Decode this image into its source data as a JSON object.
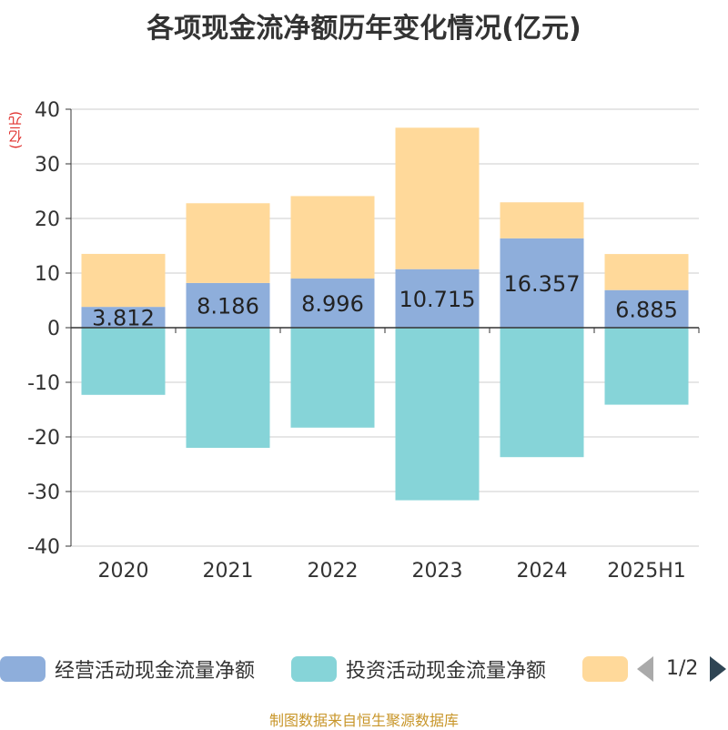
{
  "title": "各项现金流净额历年变化情况(亿元)",
  "unit_label": "(亿元)",
  "source_text": "制图数据来自恒生聚源数据库",
  "legend": {
    "items": [
      {
        "label": "经营活动现金流量净额",
        "color": "#8eaedb"
      },
      {
        "label": "投资活动现金流量净额",
        "color": "#86d4d8"
      },
      {
        "label": "",
        "color": "#ffd99a"
      }
    ],
    "page_indicator": "1/2"
  },
  "chart_data": {
    "type": "bar",
    "stacked": true,
    "categories": [
      "2020",
      "2021",
      "2022",
      "2023",
      "2024",
      "2025H1"
    ],
    "series": [
      {
        "name": "经营活动现金流量净额",
        "color": "#8eaedb",
        "values": [
          3.812,
          8.186,
          8.996,
          10.715,
          16.357,
          6.885
        ]
      },
      {
        "name": "投资活动现金流量净额",
        "color": "#86d4d8",
        "values": [
          -12.3,
          -22.0,
          -18.3,
          -31.6,
          -23.7,
          -14.1
        ]
      },
      {
        "name": "",
        "color": "#ffd99a",
        "values": [
          9.7,
          14.6,
          15.1,
          25.9,
          6.6,
          6.6
        ]
      }
    ],
    "data_labels": [
      "3.812",
      "8.186",
      "8.996",
      "10.715",
      "16.357",
      "6.885"
    ],
    "y_ticks": [
      40,
      30,
      20,
      10,
      0,
      -10,
      -20,
      -30,
      -40
    ],
    "ylim": [
      -40,
      40
    ],
    "grid": true,
    "legend_position": "bottom"
  }
}
